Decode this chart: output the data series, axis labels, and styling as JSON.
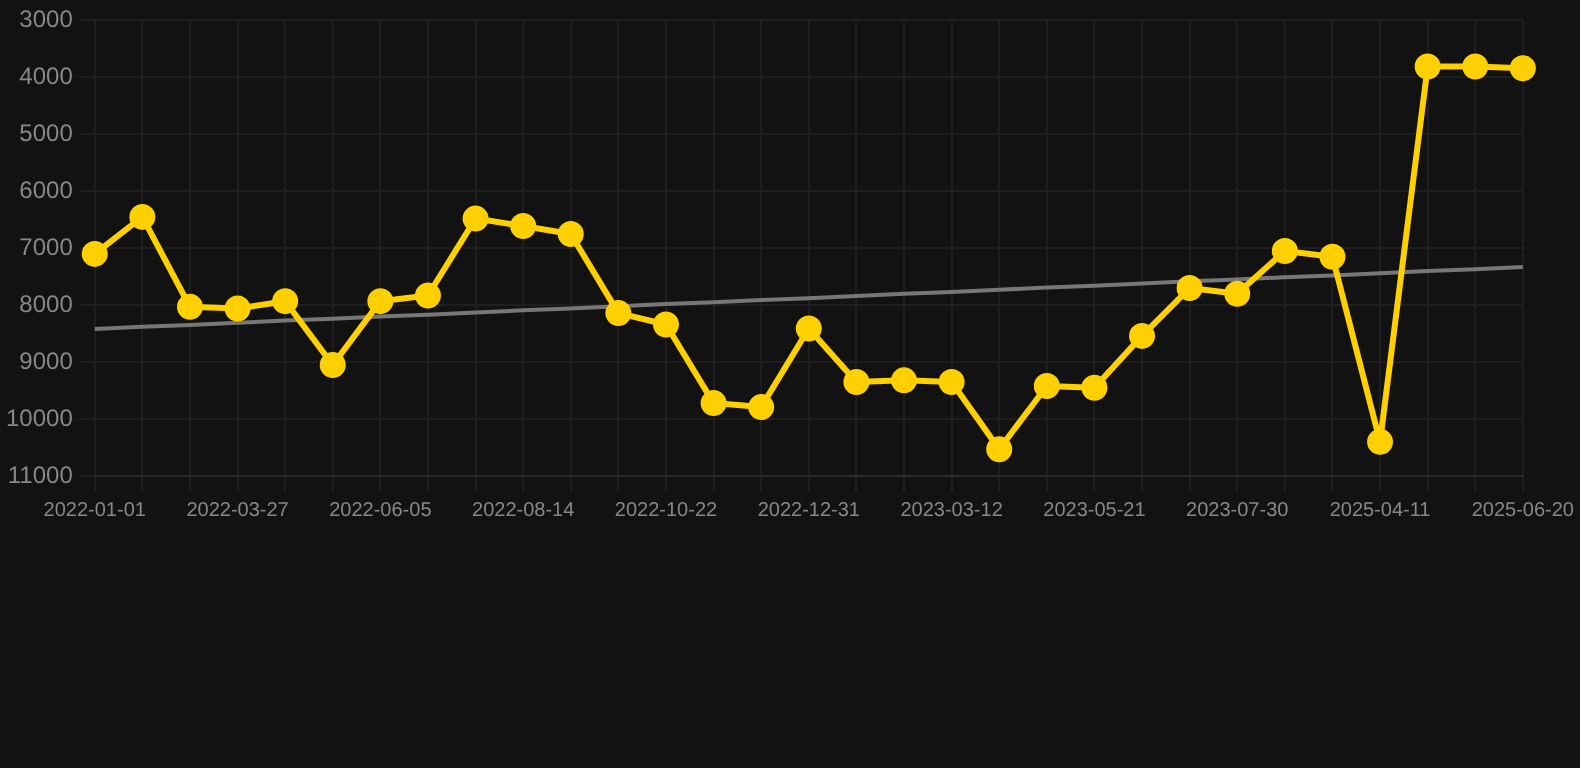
{
  "chart_data": {
    "type": "line",
    "categories": [
      "2022-01-01",
      null,
      null,
      "2022-03-27",
      null,
      null,
      "2022-06-05",
      null,
      null,
      "2022-08-14",
      null,
      null,
      "2022-10-22",
      null,
      null,
      "2022-12-31",
      null,
      null,
      "2023-03-12",
      null,
      null,
      "2023-05-21",
      null,
      null,
      "2023-07-30",
      null,
      null,
      "2025-04-11",
      null,
      null,
      "2025-06-20"
    ],
    "series": [
      {
        "type": "line",
        "color": "#ffd000",
        "marker": "circle",
        "values": [
          7100,
          6450,
          8030,
          8060,
          7930,
          9050,
          7930,
          7830,
          6480,
          6610,
          6750,
          8140,
          8340,
          9720,
          9790,
          8410,
          9350,
          9320,
          9350,
          10530,
          9420,
          9450,
          8540,
          7700,
          7800,
          7050,
          7150,
          10400,
          3810,
          3810,
          3840
        ]
      },
      {
        "type": "line",
        "color": "#777777",
        "marker": "none",
        "values": [
          8420,
          8380,
          8350,
          8310,
          8270,
          8240,
          8200,
          8170,
          8130,
          8090,
          8060,
          8020,
          7980,
          7950,
          7910,
          7880,
          7840,
          7800,
          7770,
          7730,
          7690,
          7660,
          7620,
          7580,
          7550,
          7510,
          7480,
          7440,
          7400,
          7370,
          7330
        ]
      }
    ],
    "ylim": [
      11000,
      3000
    ],
    "yticks": [
      3000,
      4000,
      5000,
      6000,
      7000,
      8000,
      9000,
      10000,
      11000
    ],
    "grid": true
  }
}
